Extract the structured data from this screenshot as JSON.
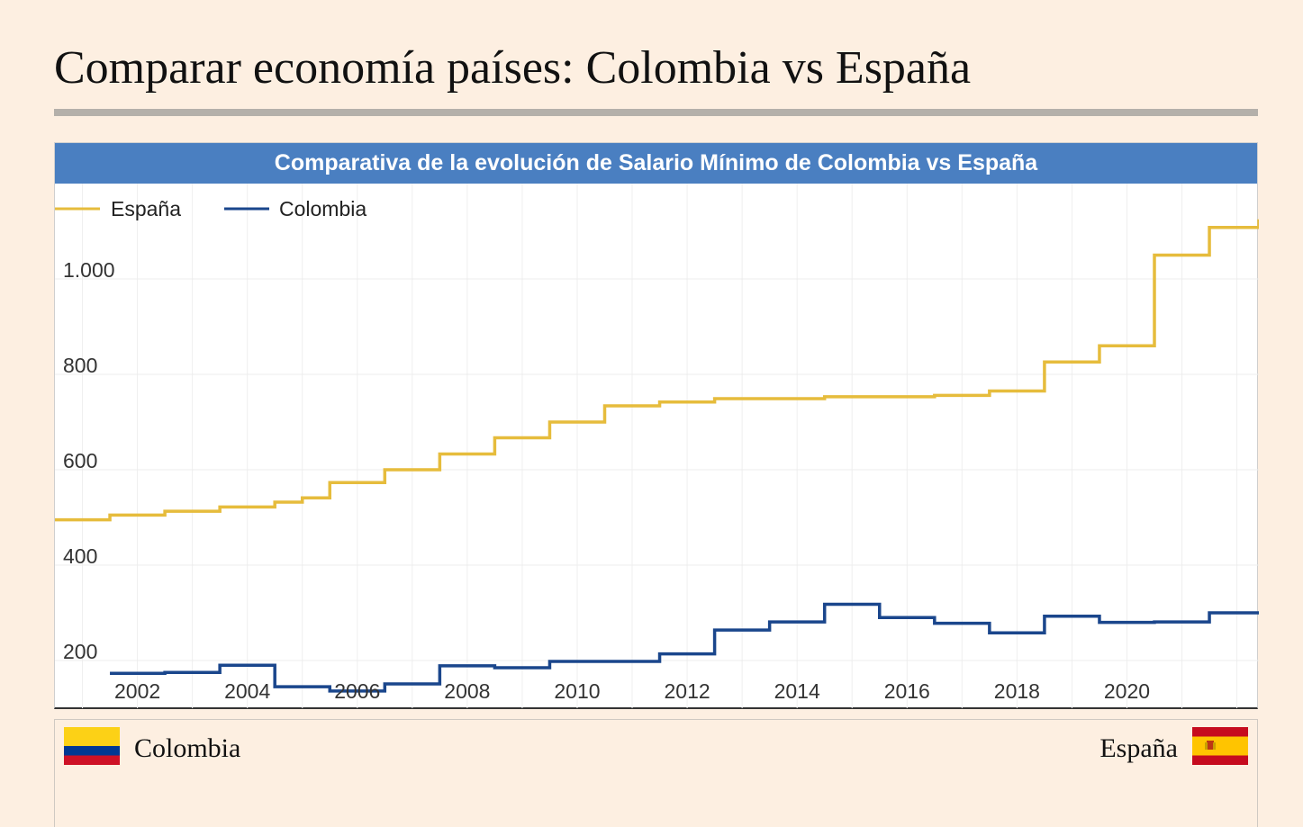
{
  "page": {
    "title": "Comparar economía países: Colombia vs España"
  },
  "chart_data": {
    "type": "line",
    "step": true,
    "title": "Comparativa de la evolución de Salario Mínimo de Colombia vs España",
    "xlabel": "",
    "ylabel": "",
    "x_tick_labels": [
      "2002",
      "2004",
      "2006",
      "2008",
      "2010",
      "2012",
      "2014",
      "2016",
      "2018",
      "2020"
    ],
    "y_tick_labels": [
      "200",
      "400",
      "600",
      "800",
      "1.000"
    ],
    "y_ticks": [
      200,
      400,
      600,
      800,
      1000
    ],
    "ylim": [
      100,
      1200
    ],
    "xlim": [
      2000.5,
      2022.4
    ],
    "grid": true,
    "legend_position": "top-left",
    "series": [
      {
        "name": "España",
        "color": "#e6bc3c",
        "x": [
          2000.5,
          2001.5,
          2002.5,
          2003.5,
          2004.5,
          2005.0,
          2005.5,
          2006.5,
          2007.5,
          2008.5,
          2009.5,
          2010.5,
          2011.5,
          2012.5,
          2013.5,
          2014.5,
          2015.5,
          2016.5,
          2017.5,
          2018.5,
          2019.5,
          2020.5,
          2021.5,
          2022.4
        ],
        "values": [
          495,
          505,
          513,
          522,
          532,
          541,
          573,
          600,
          633,
          667,
          700,
          734,
          742,
          749,
          749,
          753,
          753,
          756,
          765,
          826,
          860,
          1050,
          1108,
          1125
        ]
      },
      {
        "name": "Colombia",
        "color": "#1a468c",
        "x": [
          2001.5,
          2002.5,
          2003.5,
          2004.5,
          2005.5,
          2006.5,
          2007.5,
          2008.5,
          2009.5,
          2010.5,
          2011.5,
          2012.5,
          2013.5,
          2014.5,
          2015.5,
          2016.5,
          2017.5,
          2018.5,
          2019.5,
          2020.5,
          2021.5,
          2022.4
        ],
        "values": [
          173,
          175,
          190,
          145,
          136,
          151,
          189,
          185,
          198,
          198,
          214,
          264,
          281,
          318,
          290,
          278,
          258,
          293,
          280,
          281,
          300,
          300
        ]
      }
    ]
  },
  "countries": {
    "left": {
      "name": "Colombia",
      "flag_colors": [
        "#fcd116",
        "#003893",
        "#ce1126"
      ]
    },
    "right": {
      "name": "España",
      "flag_colors": [
        "#c60b1e",
        "#ffc400"
      ]
    }
  }
}
